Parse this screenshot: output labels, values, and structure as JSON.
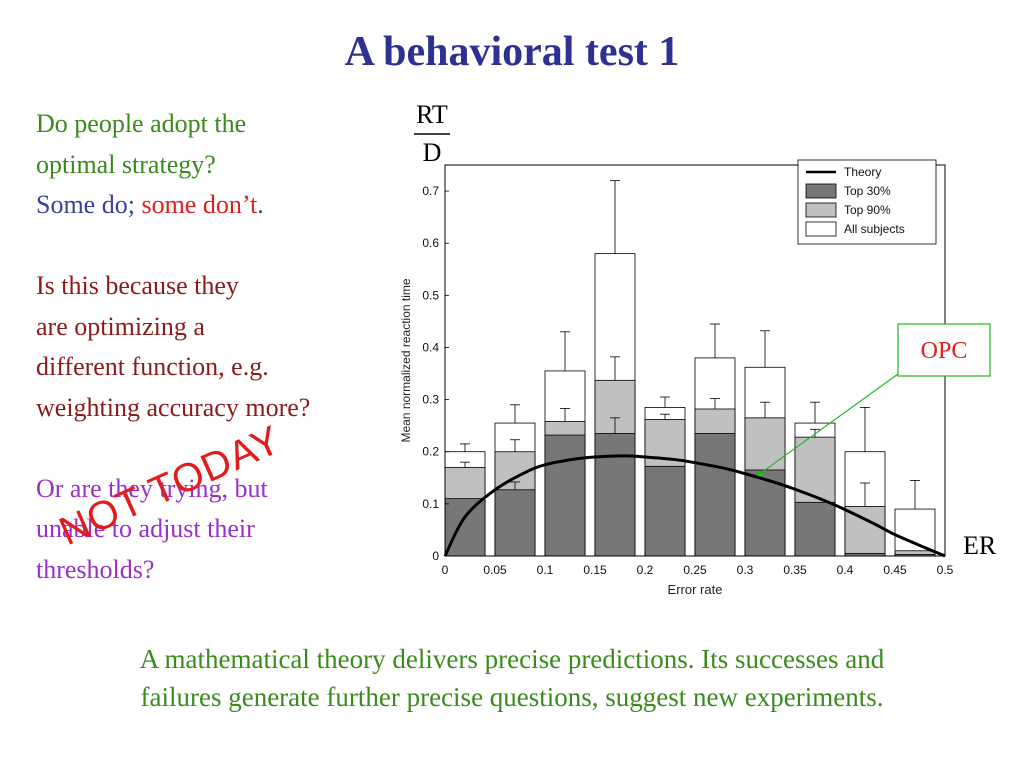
{
  "slide": {
    "title": "A behavioral test 1",
    "q1_line1": "Do people adopt the",
    "q1_line2": "optimal strategy?",
    "answer_some_do": "Some do",
    "answer_sep": ";",
    "answer_some_dont": "some don’t",
    "answer_end": ".",
    "q2_line1": "Is this because they",
    "q2_line2": "are optimizing a",
    "q2_line3": "different function, e.g.",
    "q2_line4": "weighting accuracy more?",
    "q3_line1": "Or are they trying, but",
    "q3_line2": "unable to adjust their",
    "q3_line3": "thresholds?",
    "overlay_stamp": "NOT TODAY",
    "bottom_line1": "A mathematical theory delivers precise predictions. Its successes and",
    "bottom_line2": "failures generate further precise questions, suggest new experiments."
  },
  "chart_data": {
    "type": "bar",
    "xlabel": "Error rate",
    "ylabel": "Mean normalized reaction time",
    "y_fraction_label_top": "RT",
    "y_fraction_label_bottom": "D",
    "x_extra_label": "ER",
    "callout_label": "OPC",
    "xlim": [
      0,
      0.5
    ],
    "ylim": [
      0,
      0.75
    ],
    "xticks": [
      "0",
      "0.05",
      "0.1",
      "0.15",
      "0.2",
      "0.25",
      "0.3",
      "0.35",
      "0.4",
      "0.45",
      "0.5"
    ],
    "yticks": [
      "0",
      "0.1",
      "0.2",
      "0.3",
      "0.4",
      "0.5",
      "0.6",
      "0.7"
    ],
    "legend_position": "top-right",
    "bin_centers": [
      0.0,
      0.05,
      0.1,
      0.15,
      0.2,
      0.25,
      0.3,
      0.35,
      0.4,
      0.45
    ],
    "series": [
      {
        "name": "All subjects",
        "color": "#ffffff",
        "values": [
          0.2,
          0.255,
          0.355,
          0.58,
          0.285,
          0.38,
          0.362,
          0.255,
          0.2,
          0.09
        ],
        "errors": [
          0.015,
          0.035,
          0.075,
          0.14,
          0.02,
          0.065,
          0.07,
          0.04,
          0.085,
          0.055
        ]
      },
      {
        "name": "Top 90%",
        "color": "#c0c0c0",
        "values": [
          0.17,
          0.2,
          0.258,
          0.337,
          0.262,
          0.282,
          0.265,
          0.228,
          0.095,
          0.01
        ],
        "errors": [
          0.01,
          0.023,
          0.025,
          0.045,
          0.01,
          0.02,
          0.03,
          0.015,
          0.045,
          0.0
        ]
      },
      {
        "name": "Top 30%",
        "color": "#777777",
        "values": [
          0.11,
          0.127,
          0.232,
          0.235,
          0.172,
          0.235,
          0.165,
          0.103,
          0.005,
          0.003
        ],
        "errors": [
          0.0,
          0.015,
          0.0,
          0.03,
          0.0,
          0.0,
          0.0,
          0.0,
          0.0,
          0.0
        ]
      }
    ],
    "theory": {
      "name": "Theory",
      "x": [
        0.0,
        0.02,
        0.05,
        0.08,
        0.1,
        0.13,
        0.15,
        0.18,
        0.2,
        0.23,
        0.25,
        0.28,
        0.3,
        0.33,
        0.35,
        0.38,
        0.4,
        0.43,
        0.45,
        0.48,
        0.5
      ],
      "y": [
        0.0,
        0.075,
        0.127,
        0.16,
        0.175,
        0.186,
        0.19,
        0.192,
        0.19,
        0.185,
        0.179,
        0.168,
        0.158,
        0.141,
        0.128,
        0.106,
        0.089,
        0.061,
        0.041,
        0.016,
        0.0
      ]
    },
    "callout_target": {
      "x": 0.315,
      "y": 0.158
    }
  }
}
